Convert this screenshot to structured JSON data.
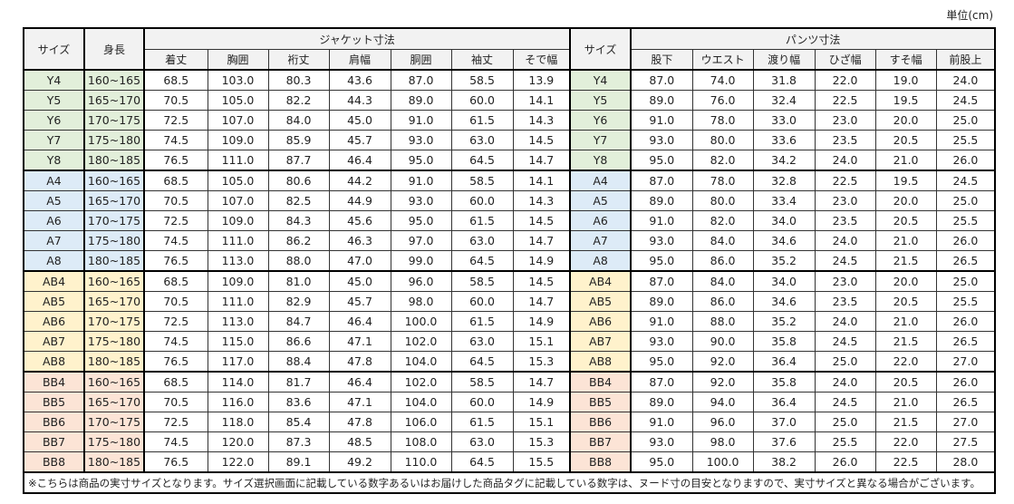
{
  "unit_label": "単位(cm)",
  "headers": {
    "size": "サイズ",
    "height": "身長",
    "jacket_group": "ジャケット寸法",
    "jacket_cols": [
      "着丈",
      "胸囲",
      "裄丈",
      "肩幅",
      "胴囲",
      "袖丈",
      "そで幅"
    ],
    "size2": "サイズ",
    "pants_group": "パンツ寸法",
    "pants_cols": [
      "股下",
      "ウエスト",
      "渡り幅",
      "ひざ幅",
      "すそ幅",
      "前股上"
    ]
  },
  "group_colors": {
    "Y": "#e2efda",
    "A": "#ddebf7",
    "AB": "#fff2cc",
    "BB": "#fce4d6"
  },
  "rows": [
    {
      "size": "Y4",
      "height": "160~165",
      "jacket": [
        "68.5",
        "103.0",
        "80.3",
        "43.6",
        "87.0",
        "58.5",
        "13.9"
      ],
      "pants": [
        "87.0",
        "74.0",
        "31.8",
        "22.0",
        "19.0",
        "24.0"
      ]
    },
    {
      "size": "Y5",
      "height": "165~170",
      "jacket": [
        "70.5",
        "105.0",
        "82.2",
        "44.3",
        "89.0",
        "60.0",
        "14.1"
      ],
      "pants": [
        "89.0",
        "76.0",
        "32.4",
        "22.5",
        "19.5",
        "24.5"
      ]
    },
    {
      "size": "Y6",
      "height": "170~175",
      "jacket": [
        "72.5",
        "107.0",
        "84.0",
        "45.0",
        "91.0",
        "61.5",
        "14.3"
      ],
      "pants": [
        "91.0",
        "78.0",
        "33.0",
        "23.0",
        "20.0",
        "25.0"
      ]
    },
    {
      "size": "Y7",
      "height": "175~180",
      "jacket": [
        "74.5",
        "109.0",
        "85.9",
        "45.7",
        "93.0",
        "63.0",
        "14.5"
      ],
      "pants": [
        "93.0",
        "80.0",
        "33.6",
        "23.5",
        "20.5",
        "25.5"
      ]
    },
    {
      "size": "Y8",
      "height": "180~185",
      "jacket": [
        "76.5",
        "111.0",
        "87.7",
        "46.4",
        "95.0",
        "64.5",
        "14.7"
      ],
      "pants": [
        "95.0",
        "82.0",
        "34.2",
        "24.0",
        "21.0",
        "26.0"
      ]
    },
    {
      "size": "A4",
      "height": "160~165",
      "jacket": [
        "68.5",
        "105.0",
        "80.6",
        "44.2",
        "91.0",
        "58.5",
        "14.1"
      ],
      "pants": [
        "87.0",
        "78.0",
        "32.8",
        "22.5",
        "19.5",
        "24.5"
      ]
    },
    {
      "size": "A5",
      "height": "165~170",
      "jacket": [
        "70.5",
        "107.0",
        "82.5",
        "44.9",
        "93.0",
        "60.0",
        "14.3"
      ],
      "pants": [
        "89.0",
        "80.0",
        "33.4",
        "23.0",
        "20.0",
        "25.0"
      ]
    },
    {
      "size": "A6",
      "height": "170~175",
      "jacket": [
        "72.5",
        "109.0",
        "84.3",
        "45.6",
        "95.0",
        "61.5",
        "14.5"
      ],
      "pants": [
        "91.0",
        "82.0",
        "34.0",
        "23.5",
        "20.5",
        "25.5"
      ]
    },
    {
      "size": "A7",
      "height": "175~180",
      "jacket": [
        "74.5",
        "111.0",
        "86.2",
        "46.3",
        "97.0",
        "63.0",
        "14.7"
      ],
      "pants": [
        "93.0",
        "84.0",
        "34.6",
        "24.0",
        "21.0",
        "26.0"
      ]
    },
    {
      "size": "A8",
      "height": "180~185",
      "jacket": [
        "76.5",
        "113.0",
        "88.0",
        "47.0",
        "99.0",
        "64.5",
        "14.9"
      ],
      "pants": [
        "95.0",
        "86.0",
        "35.2",
        "24.5",
        "21.5",
        "26.5"
      ]
    },
    {
      "size": "AB4",
      "height": "160~165",
      "jacket": [
        "68.5",
        "109.0",
        "81.0",
        "45.0",
        "96.0",
        "58.5",
        "14.5"
      ],
      "pants": [
        "87.0",
        "84.0",
        "34.0",
        "23.0",
        "20.0",
        "25.0"
      ]
    },
    {
      "size": "AB5",
      "height": "165~170",
      "jacket": [
        "70.5",
        "111.0",
        "82.9",
        "45.7",
        "98.0",
        "60.0",
        "14.7"
      ],
      "pants": [
        "89.0",
        "86.0",
        "34.6",
        "23.5",
        "20.5",
        "25.5"
      ]
    },
    {
      "size": "AB6",
      "height": "170~175",
      "jacket": [
        "72.5",
        "113.0",
        "84.7",
        "46.4",
        "100.0",
        "61.5",
        "14.9"
      ],
      "pants": [
        "91.0",
        "88.0",
        "35.2",
        "24.0",
        "21.0",
        "26.0"
      ]
    },
    {
      "size": "AB7",
      "height": "175~180",
      "jacket": [
        "74.5",
        "115.0",
        "86.6",
        "47.1",
        "102.0",
        "63.0",
        "15.1"
      ],
      "pants": [
        "93.0",
        "90.0",
        "35.8",
        "24.5",
        "21.5",
        "26.5"
      ]
    },
    {
      "size": "AB8",
      "height": "180~185",
      "jacket": [
        "76.5",
        "117.0",
        "88.4",
        "47.8",
        "104.0",
        "64.5",
        "15.3"
      ],
      "pants": [
        "95.0",
        "92.0",
        "36.4",
        "25.0",
        "22.0",
        "27.0"
      ]
    },
    {
      "size": "BB4",
      "height": "160~165",
      "jacket": [
        "68.5",
        "114.0",
        "81.7",
        "46.4",
        "102.0",
        "58.5",
        "14.7"
      ],
      "pants": [
        "87.0",
        "92.0",
        "35.8",
        "24.0",
        "20.5",
        "26.0"
      ]
    },
    {
      "size": "BB5",
      "height": "165~170",
      "jacket": [
        "70.5",
        "116.0",
        "83.6",
        "47.1",
        "104.0",
        "60.0",
        "14.9"
      ],
      "pants": [
        "89.0",
        "94.0",
        "36.4",
        "24.5",
        "21.0",
        "26.5"
      ]
    },
    {
      "size": "BB6",
      "height": "170~175",
      "jacket": [
        "72.5",
        "118.0",
        "85.4",
        "47.8",
        "106.0",
        "61.5",
        "15.1"
      ],
      "pants": [
        "91.0",
        "96.0",
        "37.0",
        "25.0",
        "21.5",
        "27.0"
      ]
    },
    {
      "size": "BB7",
      "height": "175~180",
      "jacket": [
        "74.5",
        "120.0",
        "87.3",
        "48.5",
        "108.0",
        "63.0",
        "15.3"
      ],
      "pants": [
        "93.0",
        "98.0",
        "37.6",
        "25.5",
        "22.0",
        "27.5"
      ]
    },
    {
      "size": "BB8",
      "height": "180~185",
      "jacket": [
        "76.5",
        "122.0",
        "89.1",
        "49.2",
        "110.0",
        "64.5",
        "15.5"
      ],
      "pants": [
        "95.0",
        "100.0",
        "38.2",
        "26.0",
        "22.5",
        "28.0"
      ]
    }
  ],
  "note": "※こちらは商品の実寸サイズとなります。サイズ選択画面に記載している数字あるいはお届けした商品タグに記載している数字は、ヌード寸の目安となりますので、実寸サイズと異なる場合がございます。"
}
